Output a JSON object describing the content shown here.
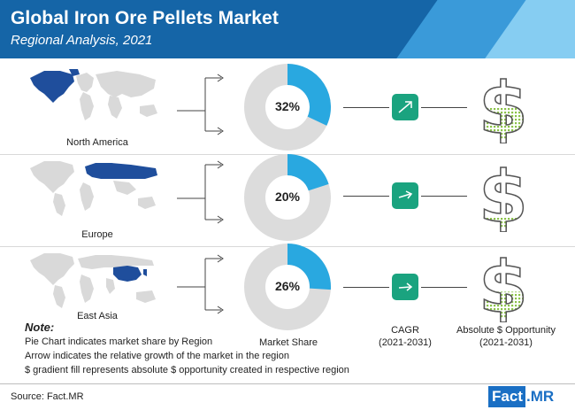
{
  "header": {
    "title": "Global Iron Ore Pellets Market",
    "subtitle": "Regional Analysis, 2021"
  },
  "colors": {
    "header_bg": "#1565a7",
    "accent_light": "#86cdf2",
    "donut_share": "#29a8e0",
    "donut_rest": "#dcdcdc",
    "cagr_fill": "#1aa37f",
    "dollar_fill": "#8bc34a",
    "map_highlight": "#1f4e9c",
    "map_base": "#d9d9d9"
  },
  "chart_data": {
    "type": "pie",
    "categories": [
      "North America",
      "Europe",
      "East Asia"
    ],
    "values": [
      32,
      20,
      26
    ],
    "value_labels": [
      "32%",
      "20%",
      "26%"
    ],
    "dollar_fill_levels": [
      0.55,
      0.2,
      0.45
    ],
    "column_labels": {
      "market_share": "Market Share",
      "cagr": "CAGR",
      "cagr_period": "(2021-2031)",
      "opportunity": "Absolute $ Opportunity",
      "opportunity_period": "(2021-2031)"
    }
  },
  "icons": {
    "cagr": "trend-arrow-icon",
    "opportunity": "dollar-icon",
    "map": "world-map-icon"
  },
  "note": {
    "title": "Note:",
    "lines": [
      "Pie Chart indicates market share by Region",
      "Arrow indicates the relative growth of the market in the region",
      "$ gradient fill represents absolute $ opportunity created in respective region"
    ]
  },
  "footer": {
    "source": "Source: Fact.MR",
    "logo_left": "Fact",
    "logo_right": ".MR"
  }
}
